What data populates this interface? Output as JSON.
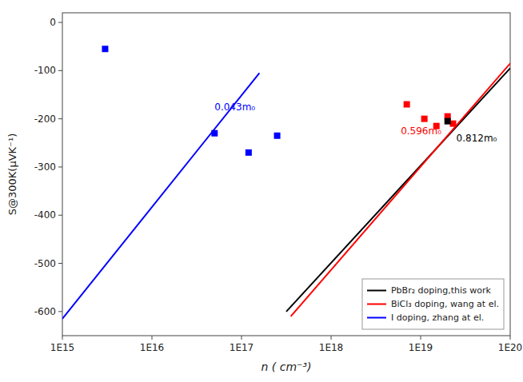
{
  "chart_data": {
    "type": "scatter",
    "xlabel": "n ( cm⁻³)",
    "ylabel": "S@300K(μVK⁻¹)",
    "log": "x",
    "xlim": [
      1000000000000000.0,
      1e+20
    ],
    "ylim": [
      -650,
      20
    ],
    "xticks": [
      {
        "value": 1000000000000000.0,
        "label": "1E15"
      },
      {
        "value": 1e+16,
        "label": "1E16"
      },
      {
        "value": 1e+17,
        "label": "1E17"
      },
      {
        "value": 1e+18,
        "label": "1E18"
      },
      {
        "value": 1e+19,
        "label": "1E19"
      },
      {
        "value": 1e+20,
        "label": "1E20"
      }
    ],
    "yticks": [
      0,
      -100,
      -200,
      -300,
      -400,
      -500,
      -600
    ],
    "legend": "lower right",
    "series": [
      {
        "name": "PbBr₂ doping,this work",
        "type": "line",
        "color": "#000000",
        "x": [
          3.1622776601683795e+17,
          1e+20
        ],
        "values": [
          -600,
          -95
        ]
      },
      {
        "name": "BiCl₃ doping, wang at el.",
        "type": "line",
        "color": "#ff0000",
        "x": [
          3.5481338923357536e+17,
          1e+20
        ],
        "values": [
          -610,
          -85
        ]
      },
      {
        "name": "I doping, zhang at el.",
        "type": "line",
        "color": "#0000ff",
        "x": [
          1000000000000000.0,
          1.5848931924611133e+17
        ],
        "values": [
          -615,
          -105
        ]
      },
      {
        "type": "scatter",
        "color": "#0000ff",
        "marker": "square",
        "x": [
          3000000000000000.0,
          5e+16,
          1.2e+17,
          2.5e+17
        ],
        "values": [
          -55,
          -230,
          -270,
          -235
        ]
      },
      {
        "type": "scatter",
        "color": "#ff0000",
        "marker": "square",
        "x": [
          7e+18,
          1.1e+19,
          1.5e+19,
          2e+19,
          2.3e+19
        ],
        "values": [
          -170,
          -200,
          -215,
          -195,
          -210
        ]
      },
      {
        "type": "scatter",
        "color": "#000000",
        "marker": "square",
        "x": [
          2e+19
        ],
        "values": [
          -205
        ]
      }
    ],
    "annotations": [
      {
        "text": "0.043m₀",
        "x": 5e+16,
        "y": -175,
        "color": "#0000ff"
      },
      {
        "text": "0.596m₀",
        "x": 6e+18,
        "y": -225,
        "color": "#ff0000"
      },
      {
        "text": "0.812m₀",
        "x": 2.5e+19,
        "y": -240,
        "color": "#000000"
      }
    ]
  }
}
